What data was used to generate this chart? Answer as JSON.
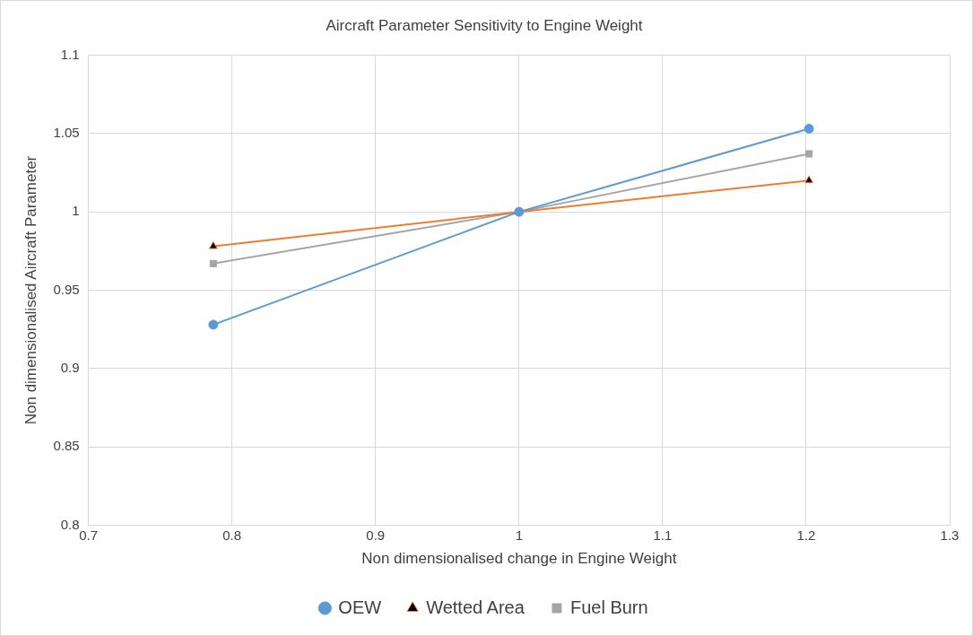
{
  "chart_data": {
    "type": "line",
    "title": "Aircraft Parameter Sensitivity to Engine Weight",
    "xlabel": "Non dimensionalised change in Engine Weight",
    "ylabel": "Non dimensionalised Aircraft Parameter",
    "x": [
      0.787,
      1,
      1.202
    ],
    "series": [
      {
        "name": "OEW",
        "color": "#5b9bd5",
        "marker": "circle",
        "values": [
          0.928,
          1,
          1.053
        ]
      },
      {
        "name": "Wetted Area",
        "color": "#ed7d31",
        "marker": "triangle",
        "values": [
          0.978,
          1,
          1.02
        ]
      },
      {
        "name": "Fuel Burn",
        "color": "#a5a5a5",
        "marker": "square",
        "values": [
          0.967,
          1,
          1.037
        ]
      }
    ],
    "xlim": [
      0.7,
      1.3
    ],
    "xticks": [
      0.7,
      0.8,
      0.9,
      1,
      1.1,
      1.2,
      1.3
    ],
    "ylim": [
      0.8,
      1.1
    ],
    "yticks": [
      0.8,
      0.85,
      0.9,
      0.95,
      1,
      1.05,
      1.1
    ],
    "grid": true,
    "legend": "bottom",
    "line_style": "solid"
  }
}
